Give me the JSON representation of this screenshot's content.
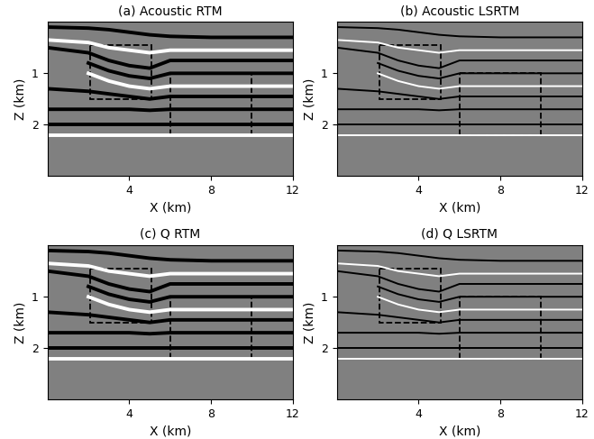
{
  "chart_data": [
    {
      "type": "line",
      "title": "(a) Acoustic RTM",
      "x_label": "X (km)",
      "y_label": "Z (km)",
      "x": [
        0,
        2,
        3,
        4,
        5,
        6,
        8,
        10,
        12
      ],
      "xlim": [
        0,
        12
      ],
      "xticks": [
        4,
        8,
        12
      ],
      "ylim": [
        3,
        0
      ],
      "yticks": [
        1,
        2
      ],
      "boxes": [
        {
          "x": [
            2.1,
            5.1
          ],
          "z": [
            0.45,
            1.5
          ]
        },
        {
          "x": [
            6,
            10
          ],
          "z": [
            1.0,
            2.2
          ]
        }
      ],
      "series": [
        {
          "color": "#000000",
          "values": [
            0.1,
            0.12,
            0.15,
            0.2,
            0.25,
            0.28,
            0.3,
            0.3,
            0.3
          ]
        },
        {
          "color": "#ffffff",
          "values": [
            0.35,
            0.4,
            0.5,
            0.55,
            0.6,
            0.55,
            0.55,
            0.55,
            0.55
          ]
        },
        {
          "color": "#000000",
          "values": [
            0.5,
            0.6,
            0.75,
            0.85,
            0.9,
            0.75,
            0.75,
            0.75,
            0.75
          ]
        },
        {
          "color": "#000000",
          "values": [
            null,
            0.8,
            0.95,
            1.05,
            1.1,
            1.0,
            1.0,
            1.0,
            1.0
          ]
        },
        {
          "color": "#ffffff",
          "values": [
            null,
            1.0,
            1.15,
            1.25,
            1.3,
            1.25,
            1.25,
            1.25,
            1.25
          ]
        },
        {
          "color": "#000000",
          "values": [
            1.3,
            1.35,
            1.4,
            1.45,
            1.5,
            1.45,
            1.45,
            1.45,
            1.45
          ]
        },
        {
          "color": "#000000",
          "values": [
            1.7,
            1.7,
            1.7,
            1.7,
            1.72,
            1.7,
            1.7,
            1.7,
            1.7
          ]
        },
        {
          "color": "#000000",
          "values": [
            2.0,
            2.0,
            2.0,
            2.0,
            2.0,
            2.0,
            2.0,
            2.0,
            2.0
          ]
        },
        {
          "color": "#ffffff",
          "values": [
            2.2,
            2.2,
            2.2,
            2.2,
            2.2,
            2.2,
            2.2,
            2.2,
            2.2
          ]
        }
      ]
    },
    {
      "type": "line",
      "title": "(b) Acoustic LSRTM",
      "x_label": "X (km)",
      "y_label": "Z (km)",
      "x": [
        0,
        2,
        3,
        4,
        5,
        6,
        8,
        10,
        12
      ],
      "xlim": [
        0,
        12
      ],
      "xticks": [
        4,
        8,
        12
      ],
      "ylim": [
        3,
        0
      ],
      "yticks": [
        1,
        2
      ],
      "boxes": [
        {
          "x": [
            2.1,
            5.1
          ],
          "z": [
            0.45,
            1.5
          ]
        },
        {
          "x": [
            6,
            10
          ],
          "z": [
            1.0,
            2.2
          ]
        }
      ],
      "series": [
        {
          "color": "#000000",
          "values": [
            0.1,
            0.12,
            0.15,
            0.2,
            0.25,
            0.28,
            0.3,
            0.3,
            0.3
          ]
        },
        {
          "color": "#ffffff",
          "values": [
            0.35,
            0.4,
            0.5,
            0.55,
            0.6,
            0.55,
            0.55,
            0.55,
            0.55
          ]
        },
        {
          "color": "#000000",
          "values": [
            0.5,
            0.6,
            0.75,
            0.85,
            0.9,
            0.75,
            0.75,
            0.75,
            0.75
          ]
        },
        {
          "color": "#000000",
          "values": [
            null,
            0.8,
            0.95,
            1.05,
            1.1,
            1.0,
            1.0,
            1.0,
            1.0
          ]
        },
        {
          "color": "#ffffff",
          "values": [
            null,
            1.0,
            1.15,
            1.25,
            1.3,
            1.25,
            1.25,
            1.25,
            1.25
          ]
        },
        {
          "color": "#000000",
          "values": [
            1.3,
            1.35,
            1.4,
            1.45,
            1.5,
            1.45,
            1.45,
            1.45,
            1.45
          ]
        },
        {
          "color": "#000000",
          "values": [
            1.7,
            1.7,
            1.7,
            1.7,
            1.72,
            1.7,
            1.7,
            1.7,
            1.7
          ]
        },
        {
          "color": "#000000",
          "values": [
            2.0,
            2.0,
            2.0,
            2.0,
            2.0,
            2.0,
            2.0,
            2.0,
            2.0
          ]
        },
        {
          "color": "#ffffff",
          "values": [
            2.2,
            2.2,
            2.2,
            2.2,
            2.2,
            2.2,
            2.2,
            2.2,
            2.2
          ]
        }
      ]
    },
    {
      "type": "line",
      "title": "(c) Q RTM",
      "x_label": "X (km)",
      "y_label": "Z (km)",
      "x": [
        0,
        2,
        3,
        4,
        5,
        6,
        8,
        10,
        12
      ],
      "xlim": [
        0,
        12
      ],
      "xticks": [
        4,
        8,
        12
      ],
      "ylim": [
        3,
        0
      ],
      "yticks": [
        1,
        2
      ],
      "boxes": [
        {
          "x": [
            2.1,
            5.1
          ],
          "z": [
            0.45,
            1.5
          ]
        },
        {
          "x": [
            6,
            10
          ],
          "z": [
            1.0,
            2.2
          ]
        }
      ],
      "series": [
        {
          "color": "#000000",
          "values": [
            0.1,
            0.12,
            0.15,
            0.2,
            0.25,
            0.28,
            0.3,
            0.3,
            0.3
          ]
        },
        {
          "color": "#ffffff",
          "values": [
            0.35,
            0.4,
            0.5,
            0.55,
            0.6,
            0.55,
            0.55,
            0.55,
            0.55
          ]
        },
        {
          "color": "#000000",
          "values": [
            0.5,
            0.6,
            0.75,
            0.85,
            0.9,
            0.75,
            0.75,
            0.75,
            0.75
          ]
        },
        {
          "color": "#000000",
          "values": [
            null,
            0.8,
            0.95,
            1.05,
            1.1,
            1.0,
            1.0,
            1.0,
            1.0
          ]
        },
        {
          "color": "#ffffff",
          "values": [
            null,
            1.0,
            1.15,
            1.25,
            1.3,
            1.25,
            1.25,
            1.25,
            1.25
          ]
        },
        {
          "color": "#000000",
          "values": [
            1.3,
            1.35,
            1.4,
            1.45,
            1.5,
            1.45,
            1.45,
            1.45,
            1.45
          ]
        },
        {
          "color": "#000000",
          "values": [
            1.7,
            1.7,
            1.7,
            1.7,
            1.72,
            1.7,
            1.7,
            1.7,
            1.7
          ]
        },
        {
          "color": "#000000",
          "values": [
            2.0,
            2.0,
            2.0,
            2.0,
            2.0,
            2.0,
            2.0,
            2.0,
            2.0
          ]
        },
        {
          "color": "#ffffff",
          "values": [
            2.2,
            2.2,
            2.2,
            2.2,
            2.2,
            2.2,
            2.2,
            2.2,
            2.2
          ]
        }
      ]
    },
    {
      "type": "line",
      "title": "(d) Q LSRTM",
      "x_label": "X (km)",
      "y_label": "Z (km)",
      "x": [
        0,
        2,
        3,
        4,
        5,
        6,
        8,
        10,
        12
      ],
      "xlim": [
        0,
        12
      ],
      "xticks": [
        4,
        8,
        12
      ],
      "ylim": [
        3,
        0
      ],
      "yticks": [
        1,
        2
      ],
      "boxes": [
        {
          "x": [
            2.1,
            5.1
          ],
          "z": [
            0.45,
            1.5
          ]
        },
        {
          "x": [
            6,
            10
          ],
          "z": [
            1.0,
            2.2
          ]
        }
      ],
      "series": [
        {
          "color": "#000000",
          "values": [
            0.1,
            0.12,
            0.15,
            0.2,
            0.25,
            0.28,
            0.3,
            0.3,
            0.3
          ]
        },
        {
          "color": "#ffffff",
          "values": [
            0.35,
            0.4,
            0.5,
            0.55,
            0.6,
            0.55,
            0.55,
            0.55,
            0.55
          ]
        },
        {
          "color": "#000000",
          "values": [
            0.5,
            0.6,
            0.75,
            0.85,
            0.9,
            0.75,
            0.75,
            0.75,
            0.75
          ]
        },
        {
          "color": "#000000",
          "values": [
            null,
            0.8,
            0.95,
            1.05,
            1.1,
            1.0,
            1.0,
            1.0,
            1.0
          ]
        },
        {
          "color": "#ffffff",
          "values": [
            null,
            1.0,
            1.15,
            1.25,
            1.3,
            1.25,
            1.25,
            1.25,
            1.25
          ]
        },
        {
          "color": "#000000",
          "values": [
            1.3,
            1.35,
            1.4,
            1.45,
            1.5,
            1.45,
            1.45,
            1.45,
            1.45
          ]
        },
        {
          "color": "#000000",
          "values": [
            1.7,
            1.7,
            1.7,
            1.7,
            1.72,
            1.7,
            1.7,
            1.7,
            1.7
          ]
        },
        {
          "color": "#000000",
          "values": [
            2.0,
            2.0,
            2.0,
            2.0,
            2.0,
            2.0,
            2.0,
            2.0,
            2.0
          ]
        },
        {
          "color": "#ffffff",
          "values": [
            2.2,
            2.2,
            2.2,
            2.2,
            2.2,
            2.2,
            2.2,
            2.2,
            2.2
          ]
        }
      ]
    }
  ]
}
